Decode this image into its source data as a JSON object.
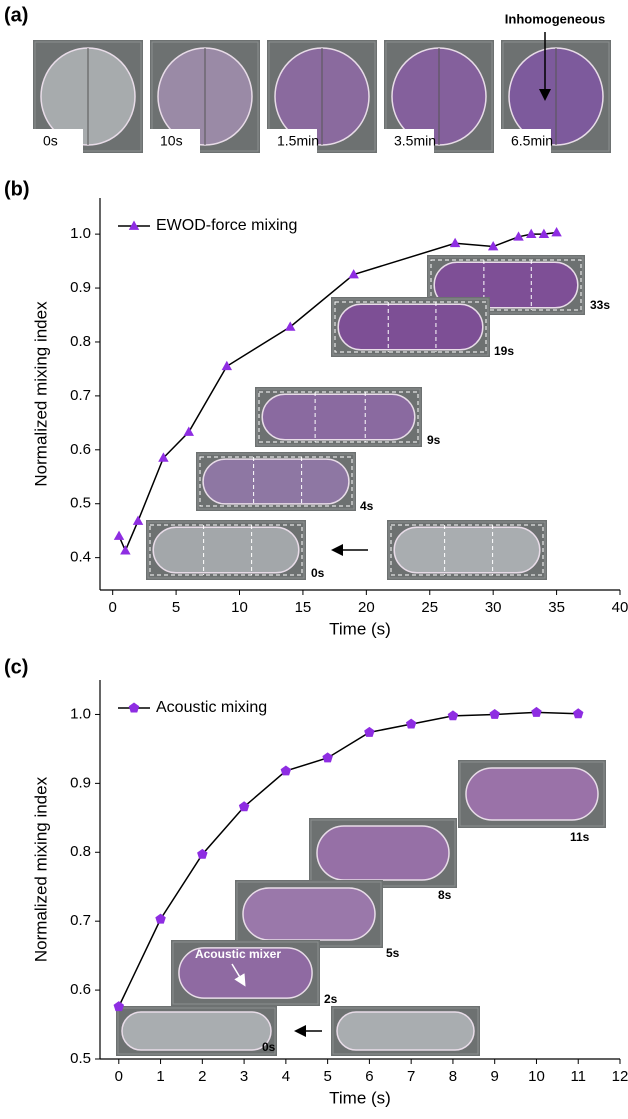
{
  "panel_a": {
    "label": "(a)",
    "frames": [
      "0s",
      "10s",
      "1.5min",
      "3.5min",
      "6.5min"
    ],
    "annotation": "Inhomogeneous"
  },
  "chart_data": [
    {
      "type": "line",
      "panel_label": "(b)",
      "x_label": "Time (s)",
      "y_label": "Normalized mixing index",
      "x": [
        0.5,
        1,
        2,
        4,
        6,
        9,
        14,
        19,
        27,
        30,
        32,
        33,
        34,
        35
      ],
      "series": [
        {
          "name": "EWOD-force mixing",
          "color": "#8e2de2",
          "marker": "triangle",
          "values": [
            0.44,
            0.413,
            0.468,
            0.585,
            0.633,
            0.755,
            0.828,
            0.925,
            0.983,
            0.977,
            0.995,
            1.0,
            1.0,
            1.003
          ]
        }
      ],
      "xlim": [
        -1,
        40
      ],
      "ylim": [
        0.34,
        1.067
      ],
      "xticks": [
        0,
        5,
        10,
        15,
        20,
        25,
        30,
        35,
        40
      ],
      "yticks": [
        0.4,
        0.5,
        0.6,
        0.7,
        0.8,
        0.9,
        {
          "value": 1,
          "label": "1.0"
        }
      ],
      "legend": "upper left",
      "annotations": [
        "33s",
        "19s",
        "9s",
        "4s",
        "0s"
      ]
    },
    {
      "type": "line",
      "panel_label": "(c)",
      "x_label": "Time (s)",
      "y_label": "Normalized mixing index",
      "x": [
        0,
        1,
        2,
        3,
        4,
        5,
        6,
        7,
        8,
        9,
        10,
        11
      ],
      "series": [
        {
          "name": "Acoustic mixing",
          "color": "#8e2de2",
          "marker": "pentagon",
          "values": [
            0.576,
            0.703,
            0.797,
            0.866,
            0.918,
            0.937,
            0.974,
            0.986,
            0.998,
            1.0,
            1.003,
            1.001
          ]
        }
      ],
      "xlim": [
        -0.45,
        12
      ],
      "ylim": [
        0.5,
        1.05
      ],
      "xticks": [
        0,
        1,
        2,
        3,
        4,
        5,
        6,
        7,
        8,
        9,
        10,
        11,
        12
      ],
      "yticks": [
        0.5,
        0.6,
        0.7,
        0.8,
        0.9,
        {
          "value": 1,
          "label": "1.0"
        }
      ],
      "legend": "upper left",
      "annotations": [
        "11s",
        "8s",
        "5s",
        "2s",
        "0s",
        "Acoustic mixer"
      ]
    }
  ]
}
